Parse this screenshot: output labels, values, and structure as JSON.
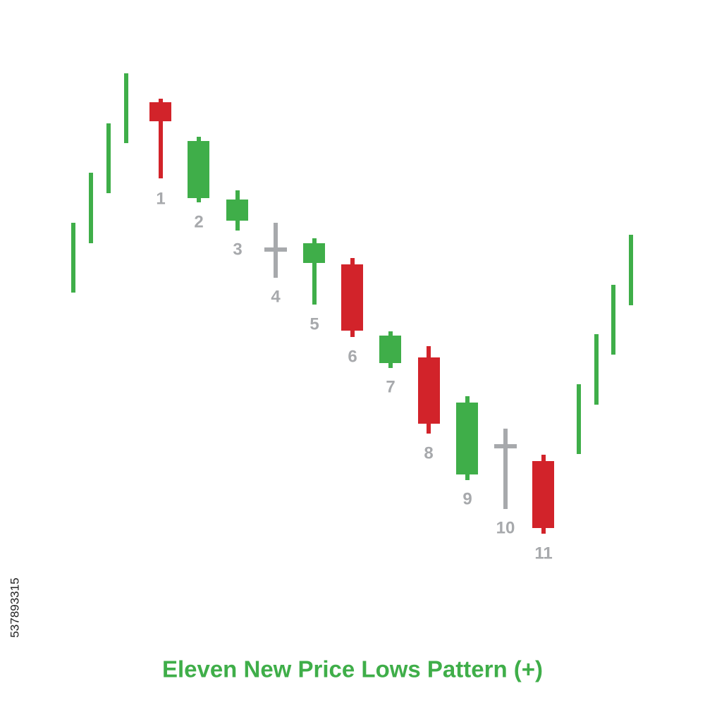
{
  "title": "Eleven New Price Lows Pattern (+)",
  "candle_labels": [
    "1",
    "2",
    "3",
    "4",
    "5",
    "6",
    "7",
    "8",
    "9",
    "10",
    "11"
  ],
  "image_id": "537893315"
}
